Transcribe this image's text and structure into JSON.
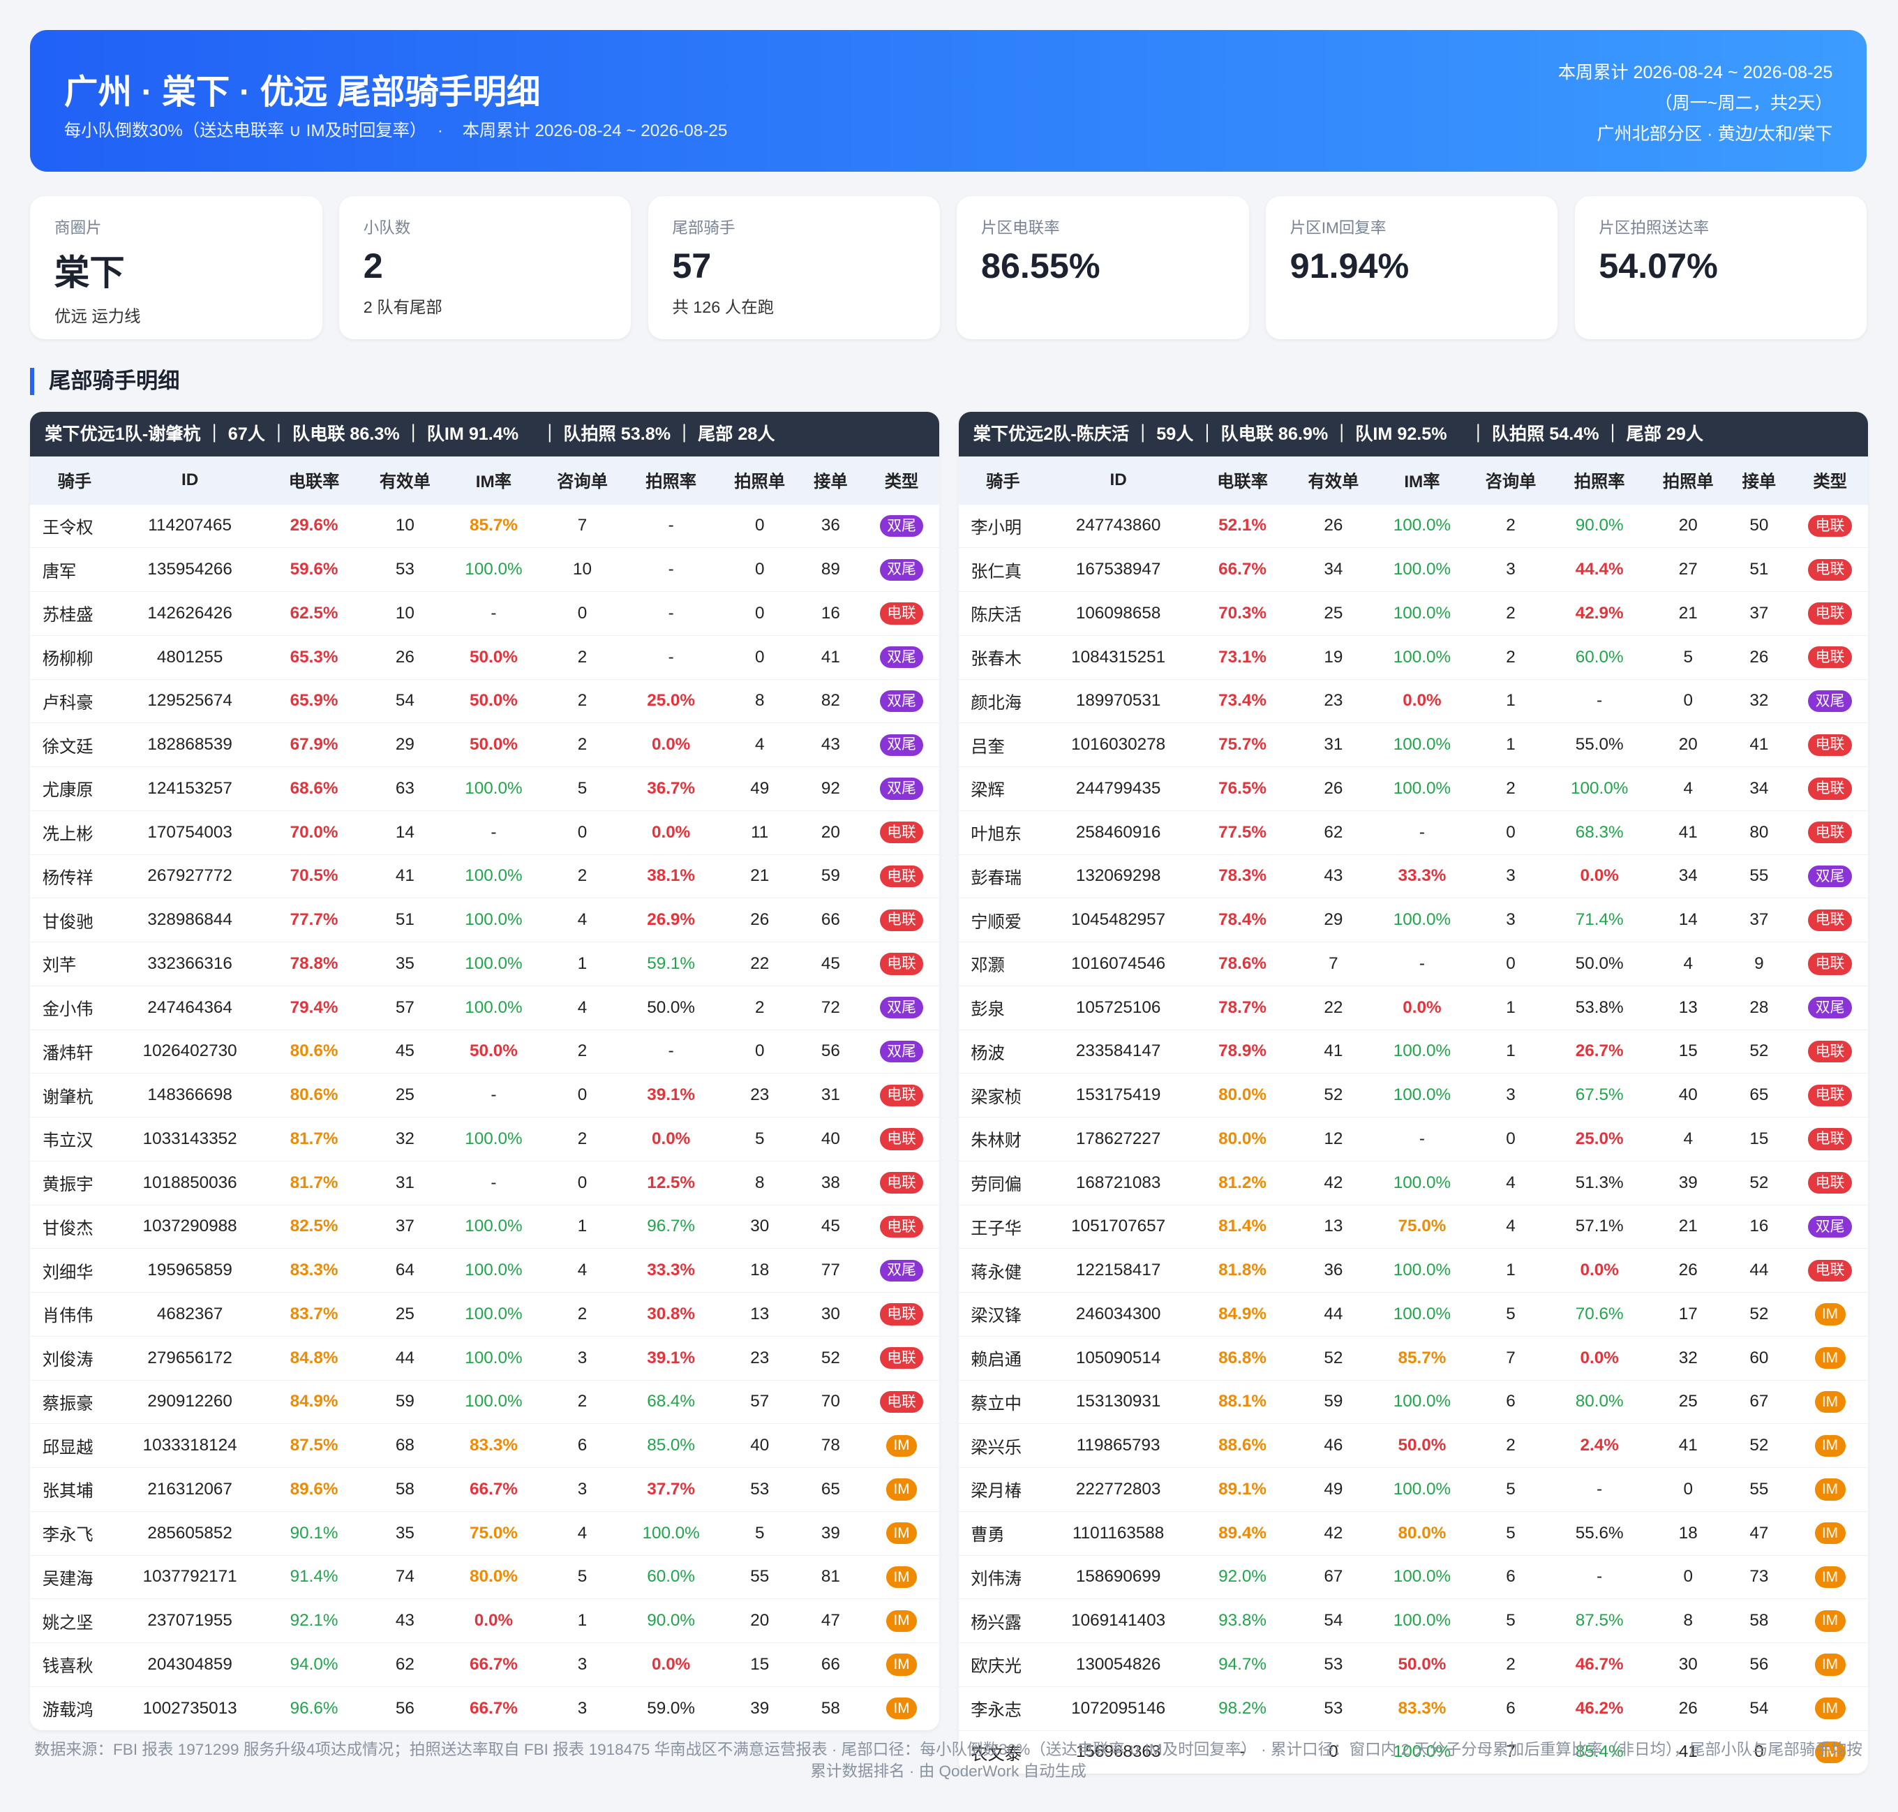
{
  "header": {
    "title": "广州 · 棠下 · 优远 尾部骑手明细",
    "subtitle": "每小队倒数30%（送达电联率 ∪ IM及时回复率）",
    "subtitle_period": "本周累计 2026-08-24 ~ 2026-08-25",
    "right_lines": [
      "本周累计 2026-08-24 ~ 2026-08-25",
      "（周一~周二，共2天）",
      "广州北部分区 · 黄边/太和/棠下"
    ]
  },
  "cards": [
    {
      "label": "商圈片",
      "value": "棠下",
      "note": "优远 运力线"
    },
    {
      "label": "小队数",
      "value": "2",
      "note": "2 队有尾部"
    },
    {
      "label": "尾部骑手",
      "value": "57",
      "note": "共 126 人在跑"
    },
    {
      "label": "片区电联率",
      "value": "86.55%"
    },
    {
      "label": "片区IM回复率",
      "value": "91.94%"
    },
    {
      "label": "片区拍照送达率",
      "value": "54.07%"
    }
  ],
  "section_title": "尾部骑手明细",
  "columns": [
    "骑手",
    "ID",
    "电联率",
    "有效单",
    "IM率",
    "咨询单",
    "拍照率",
    "拍照单",
    "接单",
    "类型"
  ],
  "badge_colors": {
    "电联": "#e5383f",
    "双尾": "#8a33d6",
    "IM": "#f08a00"
  },
  "tables": [
    {
      "header": "棠下优远1队-谢肇杭 ｜ 67人 ｜ 队电联 86.3% ｜ 队IM 91.4% 　｜ 队拍照 53.8% ｜ 尾部 28人",
      "rows": [
        [
          "王令权",
          "114207465",
          "29.6%",
          "10",
          "85.7%",
          "7",
          "-",
          "0",
          "36",
          "双尾"
        ],
        [
          "唐军",
          "135954266",
          "59.6%",
          "53",
          "100.0%",
          "10",
          "-",
          "0",
          "89",
          "双尾"
        ],
        [
          "苏桂盛",
          "142626426",
          "62.5%",
          "10",
          "-",
          "0",
          "-",
          "0",
          "16",
          "电联"
        ],
        [
          "杨柳柳",
          "4801255",
          "65.3%",
          "26",
          "50.0%",
          "2",
          "-",
          "0",
          "41",
          "双尾"
        ],
        [
          "卢科豪",
          "129525674",
          "65.9%",
          "54",
          "50.0%",
          "2",
          "25.0%",
          "8",
          "82",
          "双尾"
        ],
        [
          "徐文廷",
          "182868539",
          "67.9%",
          "29",
          "50.0%",
          "2",
          "0.0%",
          "4",
          "43",
          "双尾"
        ],
        [
          "尤康原",
          "124153257",
          "68.6%",
          "63",
          "100.0%",
          "5",
          "36.7%",
          "49",
          "92",
          "双尾"
        ],
        [
          "冼上彬",
          "170754003",
          "70.0%",
          "14",
          "-",
          "0",
          "0.0%",
          "11",
          "20",
          "电联"
        ],
        [
          "杨传祥",
          "267927772",
          "70.5%",
          "41",
          "100.0%",
          "2",
          "38.1%",
          "21",
          "59",
          "电联"
        ],
        [
          "甘俊驰",
          "328986844",
          "77.7%",
          "51",
          "100.0%",
          "4",
          "26.9%",
          "26",
          "66",
          "电联"
        ],
        [
          "刘芊",
          "332366316",
          "78.8%",
          "35",
          "100.0%",
          "1",
          "59.1%",
          "22",
          "45",
          "电联"
        ],
        [
          "金小伟",
          "247464364",
          "79.4%",
          "57",
          "100.0%",
          "4",
          "50.0%",
          "2",
          "72",
          "双尾"
        ],
        [
          "潘炜轩",
          "1026402730",
          "80.6%",
          "45",
          "50.0%",
          "2",
          "-",
          "0",
          "56",
          "双尾"
        ],
        [
          "谢肇杭",
          "148366698",
          "80.6%",
          "25",
          "-",
          "0",
          "39.1%",
          "23",
          "31",
          "电联"
        ],
        [
          "韦立汉",
          "1033143352",
          "81.7%",
          "32",
          "100.0%",
          "2",
          "0.0%",
          "5",
          "40",
          "电联"
        ],
        [
          "黄振宇",
          "1018850036",
          "81.7%",
          "31",
          "-",
          "0",
          "12.5%",
          "8",
          "38",
          "电联"
        ],
        [
          "甘俊杰",
          "1037290988",
          "82.5%",
          "37",
          "100.0%",
          "1",
          "96.7%",
          "30",
          "45",
          "电联"
        ],
        [
          "刘细华",
          "195965859",
          "83.3%",
          "64",
          "100.0%",
          "4",
          "33.3%",
          "18",
          "77",
          "双尾"
        ],
        [
          "肖伟伟",
          "4682367",
          "83.7%",
          "25",
          "100.0%",
          "2",
          "30.8%",
          "13",
          "30",
          "电联"
        ],
        [
          "刘俊涛",
          "279656172",
          "84.8%",
          "44",
          "100.0%",
          "3",
          "39.1%",
          "23",
          "52",
          "电联"
        ],
        [
          "蔡振豪",
          "290912260",
          "84.9%",
          "59",
          "100.0%",
          "2",
          "68.4%",
          "57",
          "70",
          "电联"
        ],
        [
          "邱显越",
          "1033318124",
          "87.5%",
          "68",
          "83.3%",
          "6",
          "85.0%",
          "40",
          "78",
          "IM"
        ],
        [
          "张其埔",
          "216312067",
          "89.6%",
          "58",
          "66.7%",
          "3",
          "37.7%",
          "53",
          "65",
          "IM"
        ],
        [
          "李永飞",
          "285605852",
          "90.1%",
          "35",
          "75.0%",
          "4",
          "100.0%",
          "5",
          "39",
          "IM"
        ],
        [
          "吴建海",
          "1037792171",
          "91.4%",
          "74",
          "80.0%",
          "5",
          "60.0%",
          "55",
          "81",
          "IM"
        ],
        [
          "姚之坚",
          "237071955",
          "92.1%",
          "43",
          "0.0%",
          "1",
          "90.0%",
          "20",
          "47",
          "IM"
        ],
        [
          "钱喜秋",
          "204304859",
          "94.0%",
          "62",
          "66.7%",
          "3",
          "0.0%",
          "15",
          "66",
          "IM"
        ],
        [
          "游载鸿",
          "1002735013",
          "96.6%",
          "56",
          "66.7%",
          "3",
          "59.0%",
          "39",
          "58",
          "IM"
        ]
      ]
    },
    {
      "header": "棠下优远2队-陈庆活 ｜ 59人 ｜ 队电联 86.9% ｜ 队IM 92.5% 　｜ 队拍照 54.4% ｜ 尾部 29人",
      "rows": [
        [
          "李小明",
          "247743860",
          "52.1%",
          "26",
          "100.0%",
          "2",
          "90.0%",
          "20",
          "50",
          "电联"
        ],
        [
          "张仁真",
          "167538947",
          "66.7%",
          "34",
          "100.0%",
          "3",
          "44.4%",
          "27",
          "51",
          "电联"
        ],
        [
          "陈庆活",
          "106098658",
          "70.3%",
          "25",
          "100.0%",
          "2",
          "42.9%",
          "21",
          "37",
          "电联"
        ],
        [
          "张春木",
          "1084315251",
          "73.1%",
          "19",
          "100.0%",
          "2",
          "60.0%",
          "5",
          "26",
          "电联"
        ],
        [
          "颜北海",
          "189970531",
          "73.4%",
          "23",
          "0.0%",
          "1",
          "-",
          "0",
          "32",
          "双尾"
        ],
        [
          "吕奎",
          "1016030278",
          "75.7%",
          "31",
          "100.0%",
          "1",
          "55.0%",
          "20",
          "41",
          "电联"
        ],
        [
          "梁辉",
          "244799435",
          "76.5%",
          "26",
          "100.0%",
          "2",
          "100.0%",
          "4",
          "34",
          "电联"
        ],
        [
          "叶旭东",
          "258460916",
          "77.5%",
          "62",
          "-",
          "0",
          "68.3%",
          "41",
          "80",
          "电联"
        ],
        [
          "彭春瑞",
          "132069298",
          "78.3%",
          "43",
          "33.3%",
          "3",
          "0.0%",
          "34",
          "55",
          "双尾"
        ],
        [
          "宁顺爱",
          "1045482957",
          "78.4%",
          "29",
          "100.0%",
          "3",
          "71.4%",
          "14",
          "37",
          "电联"
        ],
        [
          "邓灏",
          "1016074546",
          "78.6%",
          "7",
          "-",
          "0",
          "50.0%",
          "4",
          "9",
          "电联"
        ],
        [
          "彭泉",
          "105725106",
          "78.7%",
          "22",
          "0.0%",
          "1",
          "53.8%",
          "13",
          "28",
          "双尾"
        ],
        [
          "杨波",
          "233584147",
          "78.9%",
          "41",
          "100.0%",
          "1",
          "26.7%",
          "15",
          "52",
          "电联"
        ],
        [
          "梁家桢",
          "153175419",
          "80.0%",
          "52",
          "100.0%",
          "3",
          "67.5%",
          "40",
          "65",
          "电联"
        ],
        [
          "朱林财",
          "178627227",
          "80.0%",
          "12",
          "-",
          "0",
          "25.0%",
          "4",
          "15",
          "电联"
        ],
        [
          "劳同偏",
          "168721083",
          "81.2%",
          "42",
          "100.0%",
          "4",
          "51.3%",
          "39",
          "52",
          "电联"
        ],
        [
          "王子华",
          "1051707657",
          "81.4%",
          "13",
          "75.0%",
          "4",
          "57.1%",
          "21",
          "16",
          "双尾"
        ],
        [
          "蒋永健",
          "122158417",
          "81.8%",
          "36",
          "100.0%",
          "1",
          "0.0%",
          "26",
          "44",
          "电联"
        ],
        [
          "梁汉锋",
          "246034300",
          "84.9%",
          "44",
          "100.0%",
          "5",
          "70.6%",
          "17",
          "52",
          "IM"
        ],
        [
          "赖启通",
          "105090514",
          "86.8%",
          "52",
          "85.7%",
          "7",
          "0.0%",
          "32",
          "60",
          "IM"
        ],
        [
          "蔡立中",
          "153130931",
          "88.1%",
          "59",
          "100.0%",
          "6",
          "80.0%",
          "25",
          "67",
          "IM"
        ],
        [
          "梁兴乐",
          "119865793",
          "88.6%",
          "46",
          "50.0%",
          "2",
          "2.4%",
          "41",
          "52",
          "IM"
        ],
        [
          "梁月椿",
          "222772803",
          "89.1%",
          "49",
          "100.0%",
          "5",
          "-",
          "0",
          "55",
          "IM"
        ],
        [
          "曹勇",
          "1101163588",
          "89.4%",
          "42",
          "80.0%",
          "5",
          "55.6%",
          "18",
          "47",
          "IM"
        ],
        [
          "刘伟涛",
          "158690699",
          "92.0%",
          "67",
          "100.0%",
          "6",
          "-",
          "0",
          "73",
          "IM"
        ],
        [
          "杨兴露",
          "1069141403",
          "93.8%",
          "54",
          "100.0%",
          "5",
          "87.5%",
          "8",
          "58",
          "IM"
        ],
        [
          "欧庆光",
          "130054826",
          "94.7%",
          "53",
          "50.0%",
          "2",
          "46.7%",
          "30",
          "56",
          "IM"
        ],
        [
          "李永志",
          "1072095146",
          "98.2%",
          "53",
          "83.3%",
          "6",
          "46.2%",
          "26",
          "54",
          "IM"
        ],
        [
          "农文泰",
          "156968363",
          "-",
          "0",
          "100.0%",
          "7",
          "85.4%",
          "41",
          "0",
          "IM"
        ]
      ]
    }
  ],
  "footer": "数据来源：FBI 报表 1971299 服务升级4项达成情况；拍照送达率取自 FBI 报表 1918475 华南战区不满意运营报表 · 尾部口径：每小队倒数30%（送达电联率 ∪ IM及时回复率） · 累计口径：窗口内 2 天分子分母累加后重算比率（非日均），尾部小队与尾部骑手均按累计数据排名 · 由 QoderWork 自动生成"
}
